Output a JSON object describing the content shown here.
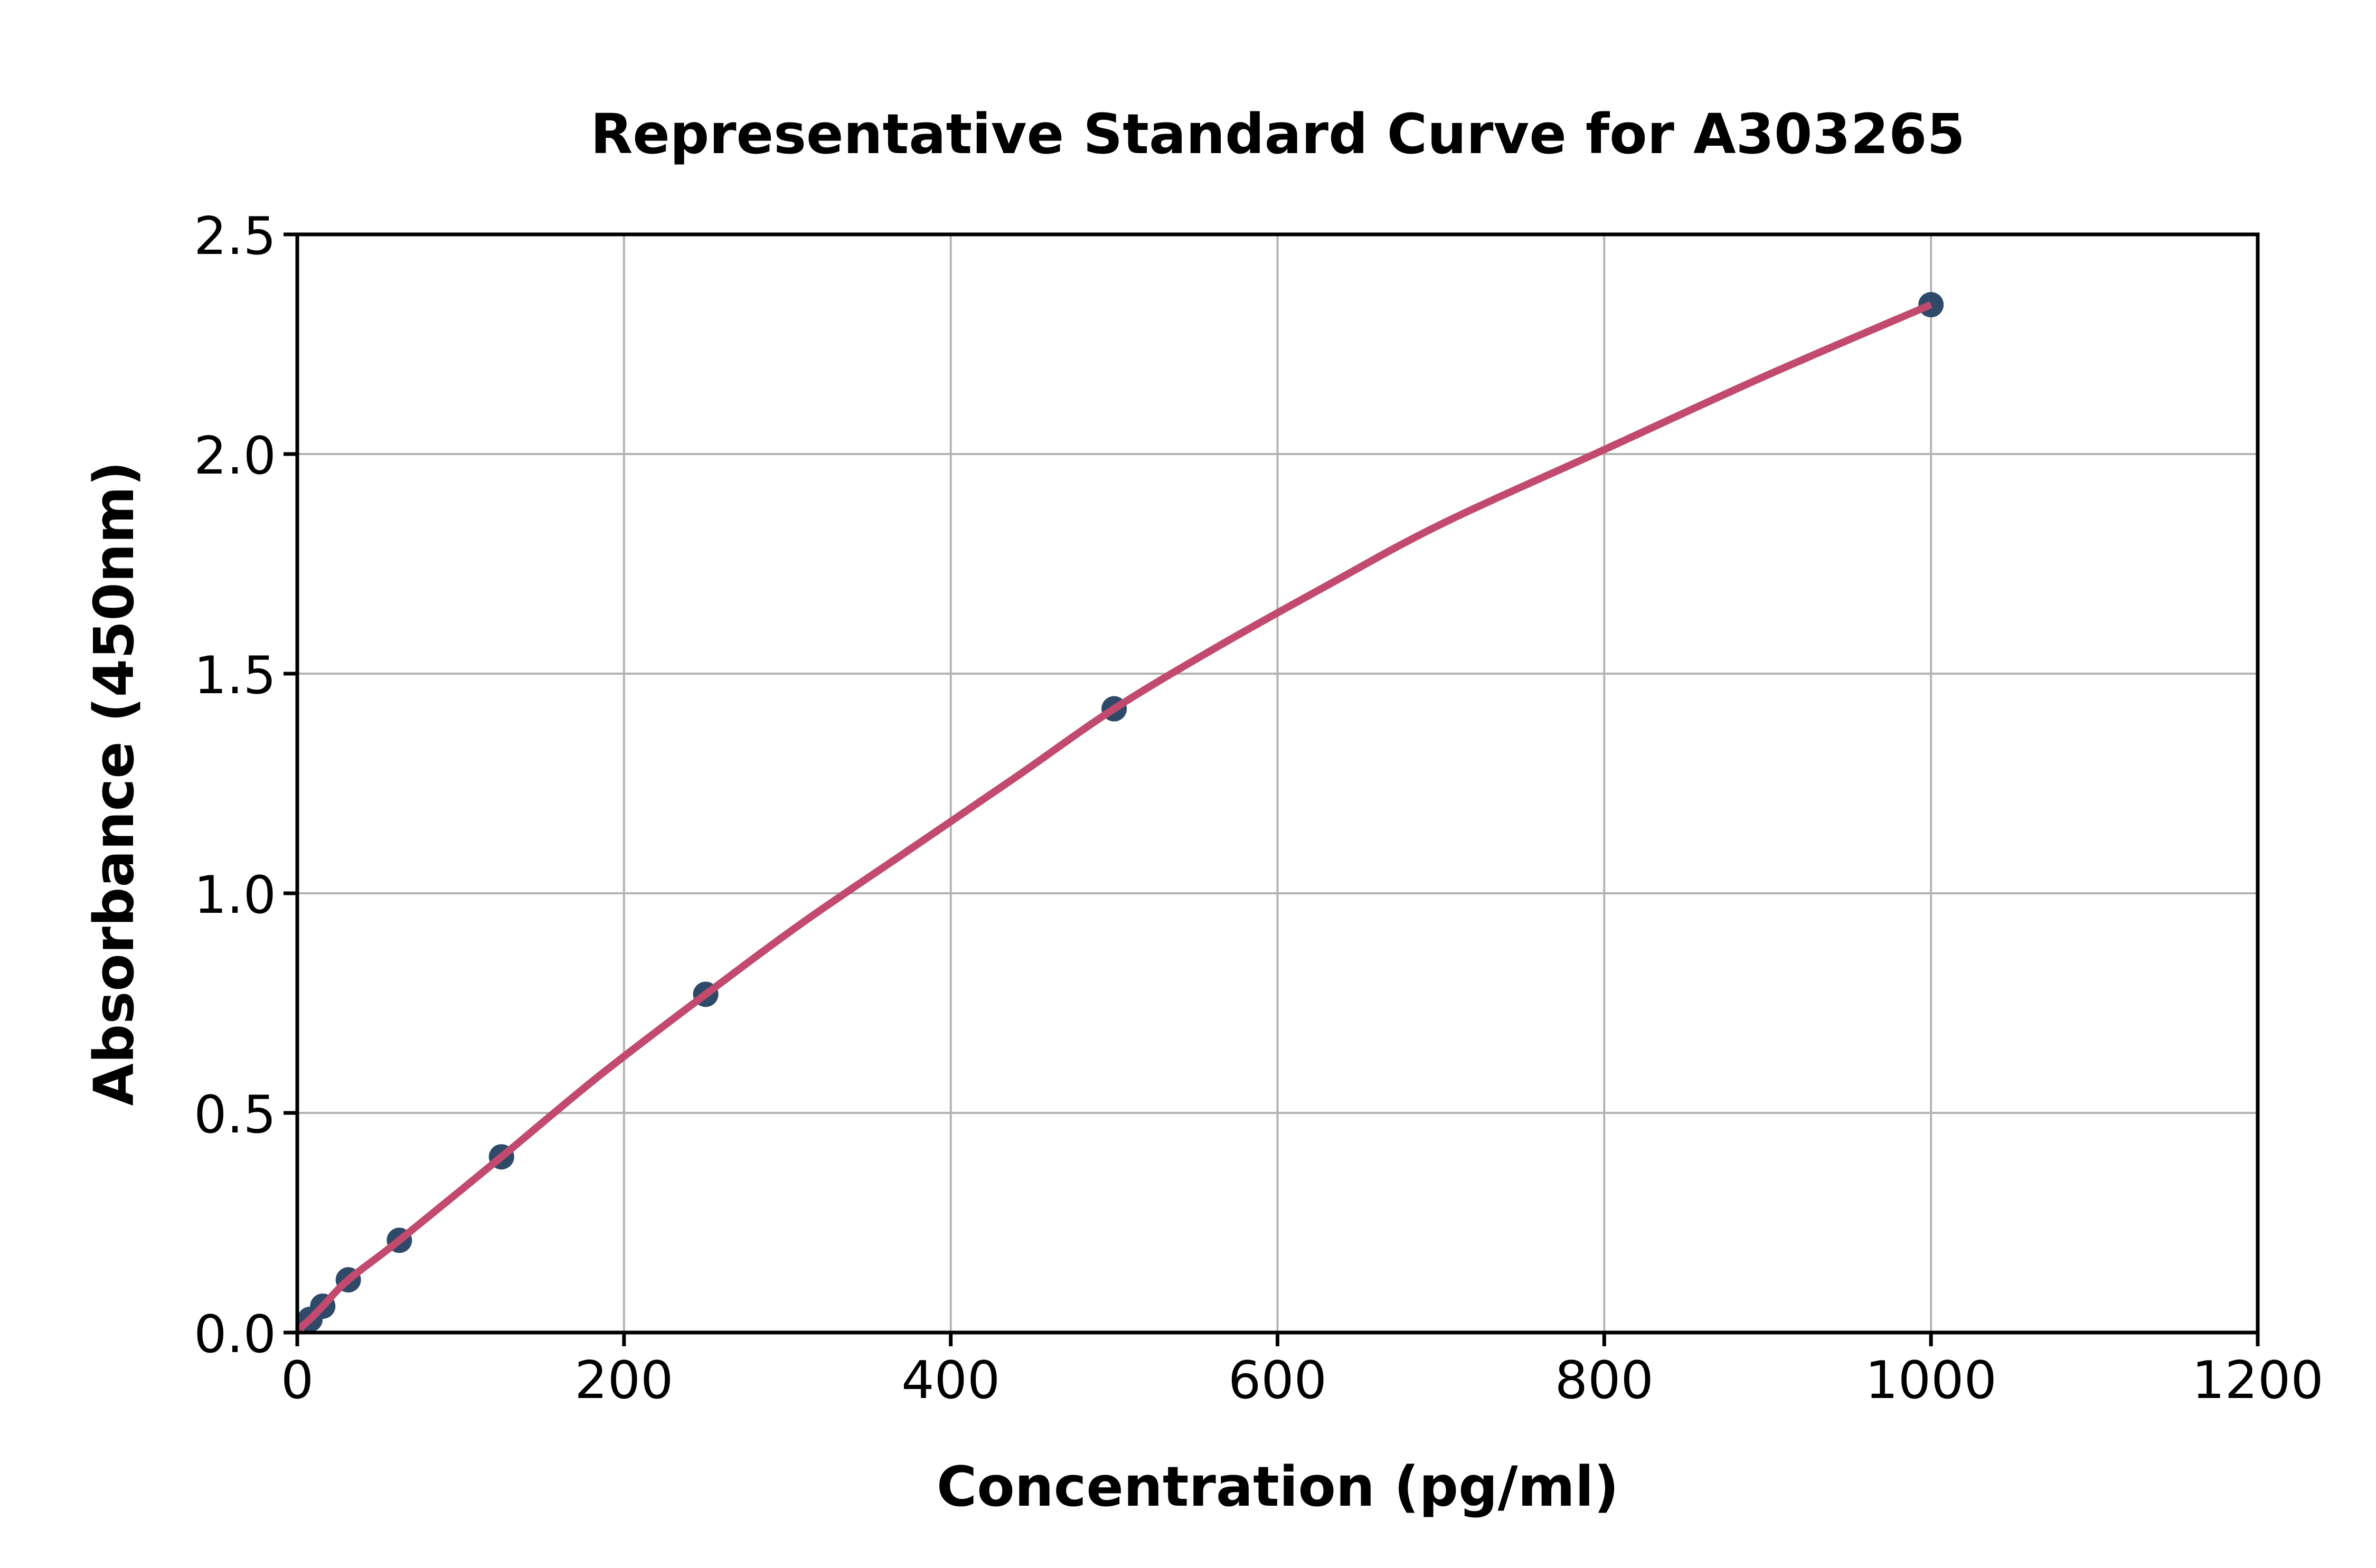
{
  "page": {
    "background": "#ffffff"
  },
  "chart_data": {
    "type": "scatter",
    "title": "Representative Standard Curve for A303265",
    "xlabel": "Concentration (pg/ml)",
    "ylabel": "Absorbance (450nm)",
    "xlim": [
      0,
      1200
    ],
    "ylim": [
      0.0,
      2.5
    ],
    "grid": true,
    "legend_position": "none",
    "xticks": [
      {
        "value": 0,
        "label": "0"
      },
      {
        "value": 200,
        "label": "200"
      },
      {
        "value": 400,
        "label": "400"
      },
      {
        "value": 600,
        "label": "600"
      },
      {
        "value": 800,
        "label": "800"
      },
      {
        "value": 1000,
        "label": "1000"
      },
      {
        "value": 1200,
        "label": "1200"
      }
    ],
    "yticks": [
      {
        "value": 0.0,
        "label": "0.0"
      },
      {
        "value": 0.5,
        "label": "0.5"
      },
      {
        "value": 1.0,
        "label": "1.0"
      },
      {
        "value": 1.5,
        "label": "1.5"
      },
      {
        "value": 2.0,
        "label": "2.0"
      },
      {
        "value": 2.5,
        "label": "2.5"
      }
    ],
    "series": [
      {
        "name": "standard-points",
        "marker": "circle",
        "concentration": [
          7.8,
          15.6,
          31.25,
          62.5,
          125,
          250,
          500,
          1000
        ],
        "absorbance": [
          0.03,
          0.06,
          0.12,
          0.21,
          0.4,
          0.77,
          1.42,
          2.34
        ]
      }
    ],
    "fit_curve": {
      "name": "fitted-standard-curve",
      "x": [
        0,
        7.8,
        15.6,
        31.25,
        62.5,
        125,
        185,
        250,
        310,
        375,
        440,
        500,
        565,
        630,
        700,
        800,
        900,
        1000
      ],
      "y": [
        0.005,
        0.03,
        0.06,
        0.12,
        0.21,
        0.4,
        0.585,
        0.77,
        0.935,
        1.1,
        1.265,
        1.42,
        1.565,
        1.7,
        1.84,
        2.01,
        2.18,
        2.34
      ]
    },
    "colors": {
      "marker": "#2e4a68",
      "curve": "#c24a6e",
      "grid": "#b3b3b3",
      "spine": "#000000",
      "text": "#000000",
      "background": "#ffffff"
    }
  }
}
